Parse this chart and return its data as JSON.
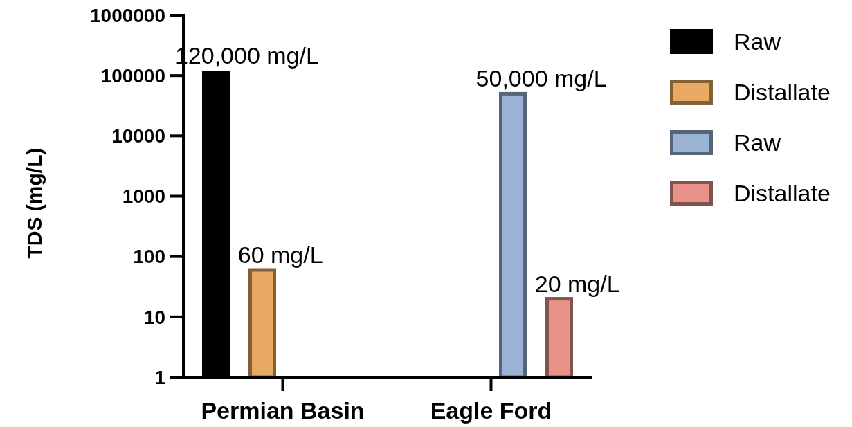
{
  "chart_data": {
    "type": "bar",
    "ylabel": "TDS (mg/L)",
    "categories": [
      "Permian Basin",
      "Eagle Ford"
    ],
    "series": [
      {
        "name": "Raw",
        "color": "#000000",
        "values": [
          120000,
          null
        ],
        "value_labels": [
          "120,000 mg/L",
          null
        ]
      },
      {
        "name": "Distallate",
        "color": "#e8a962",
        "values": [
          60,
          null
        ],
        "value_labels": [
          "60 mg/L",
          null
        ]
      },
      {
        "name": "Raw",
        "color": "#9ab3d5",
        "values": [
          null,
          50000
        ],
        "value_labels": [
          null,
          "50,000 mg/L"
        ]
      },
      {
        "name": "Distallate",
        "color": "#e8928a",
        "values": [
          null,
          20
        ],
        "value_labels": [
          null,
          "20 mg/L"
        ]
      }
    ],
    "log": "y",
    "ylim": [
      1,
      1000000
    ],
    "yticks": [
      1,
      10,
      100,
      1000,
      10000,
      100000,
      1000000
    ],
    "legend": "right"
  }
}
